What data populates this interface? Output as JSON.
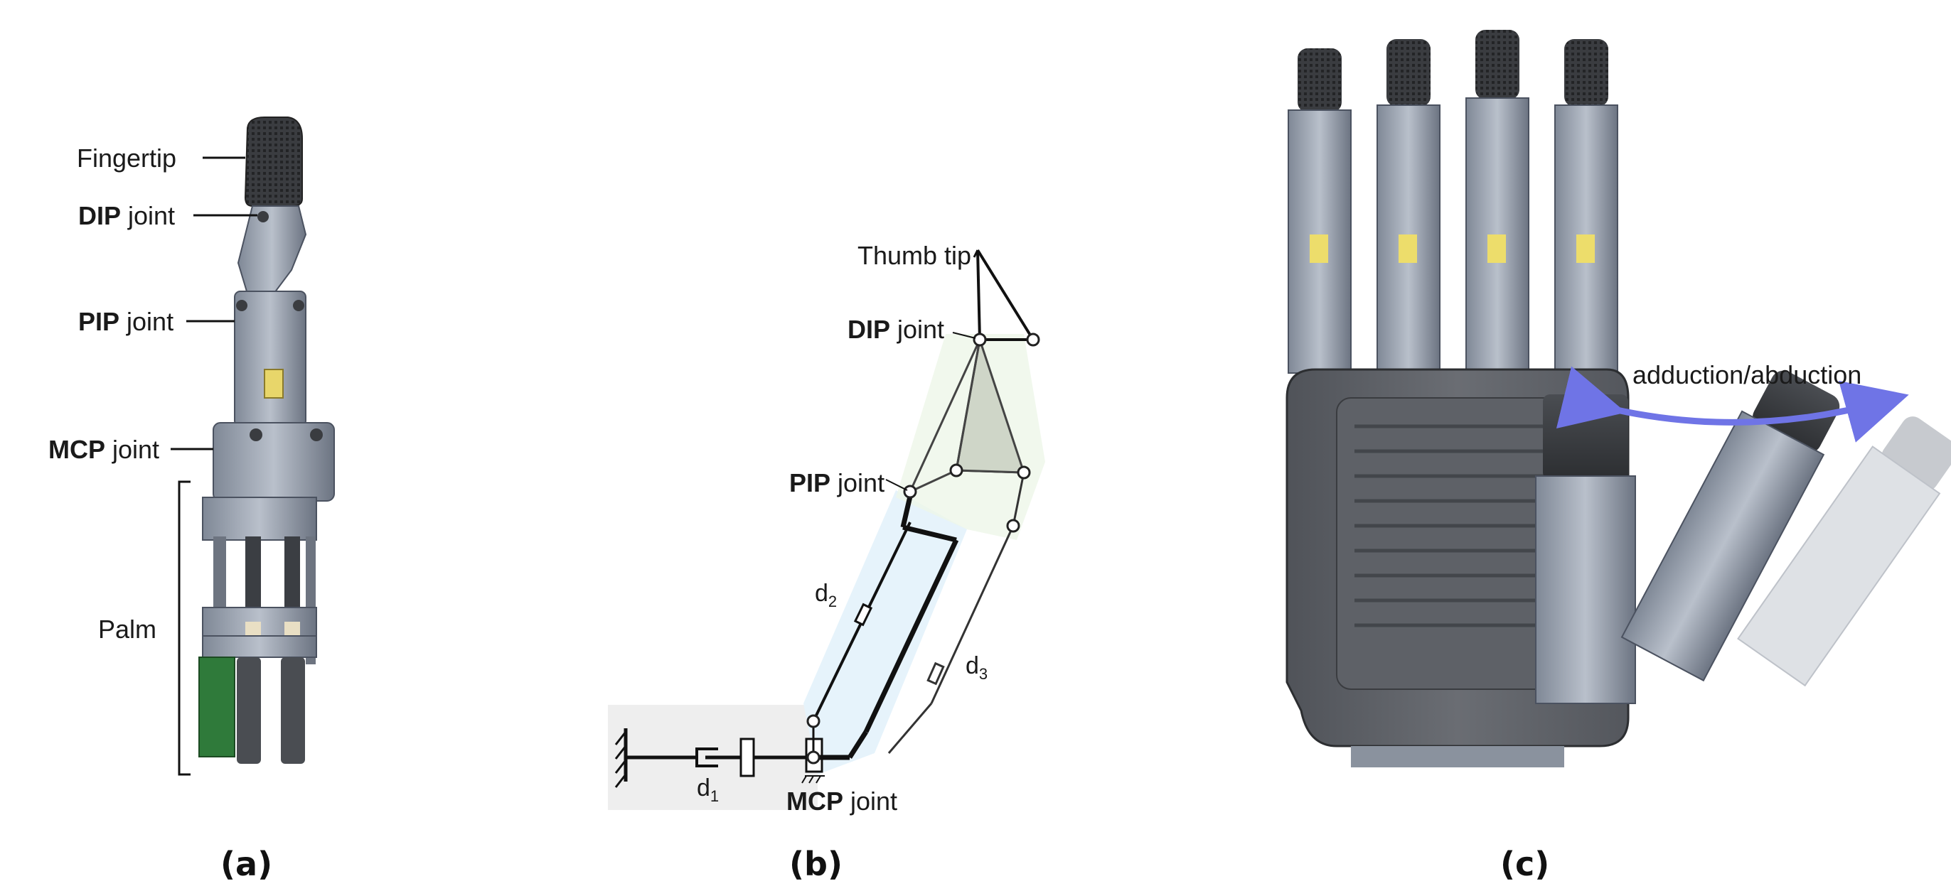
{
  "panel_a": {
    "fingertip": "Fingertip",
    "dip_bold": "DIP",
    "dip_rest": " joint",
    "pip_bold": "PIP",
    "pip_rest": " joint",
    "mcp_bold": "MCP",
    "mcp_rest": " joint",
    "palm": "Palm",
    "caption": "(a)"
  },
  "panel_b": {
    "thumb_tip": "Thumb tip",
    "dip_bold": "DIP",
    "dip_rest": " joint",
    "pip_bold": "PIP",
    "pip_rest": " joint",
    "mcp_bold": "MCP",
    "mcp_rest": " joint",
    "d1": "d",
    "d1_sub": "1",
    "d2": "d",
    "d2_sub": "2",
    "d3": "d",
    "d3_sub": "3",
    "caption": "(b)"
  },
  "panel_c": {
    "motion_label": "adduction/abduction",
    "arrow_color": "#6f74e6",
    "caption": "(c)"
  }
}
